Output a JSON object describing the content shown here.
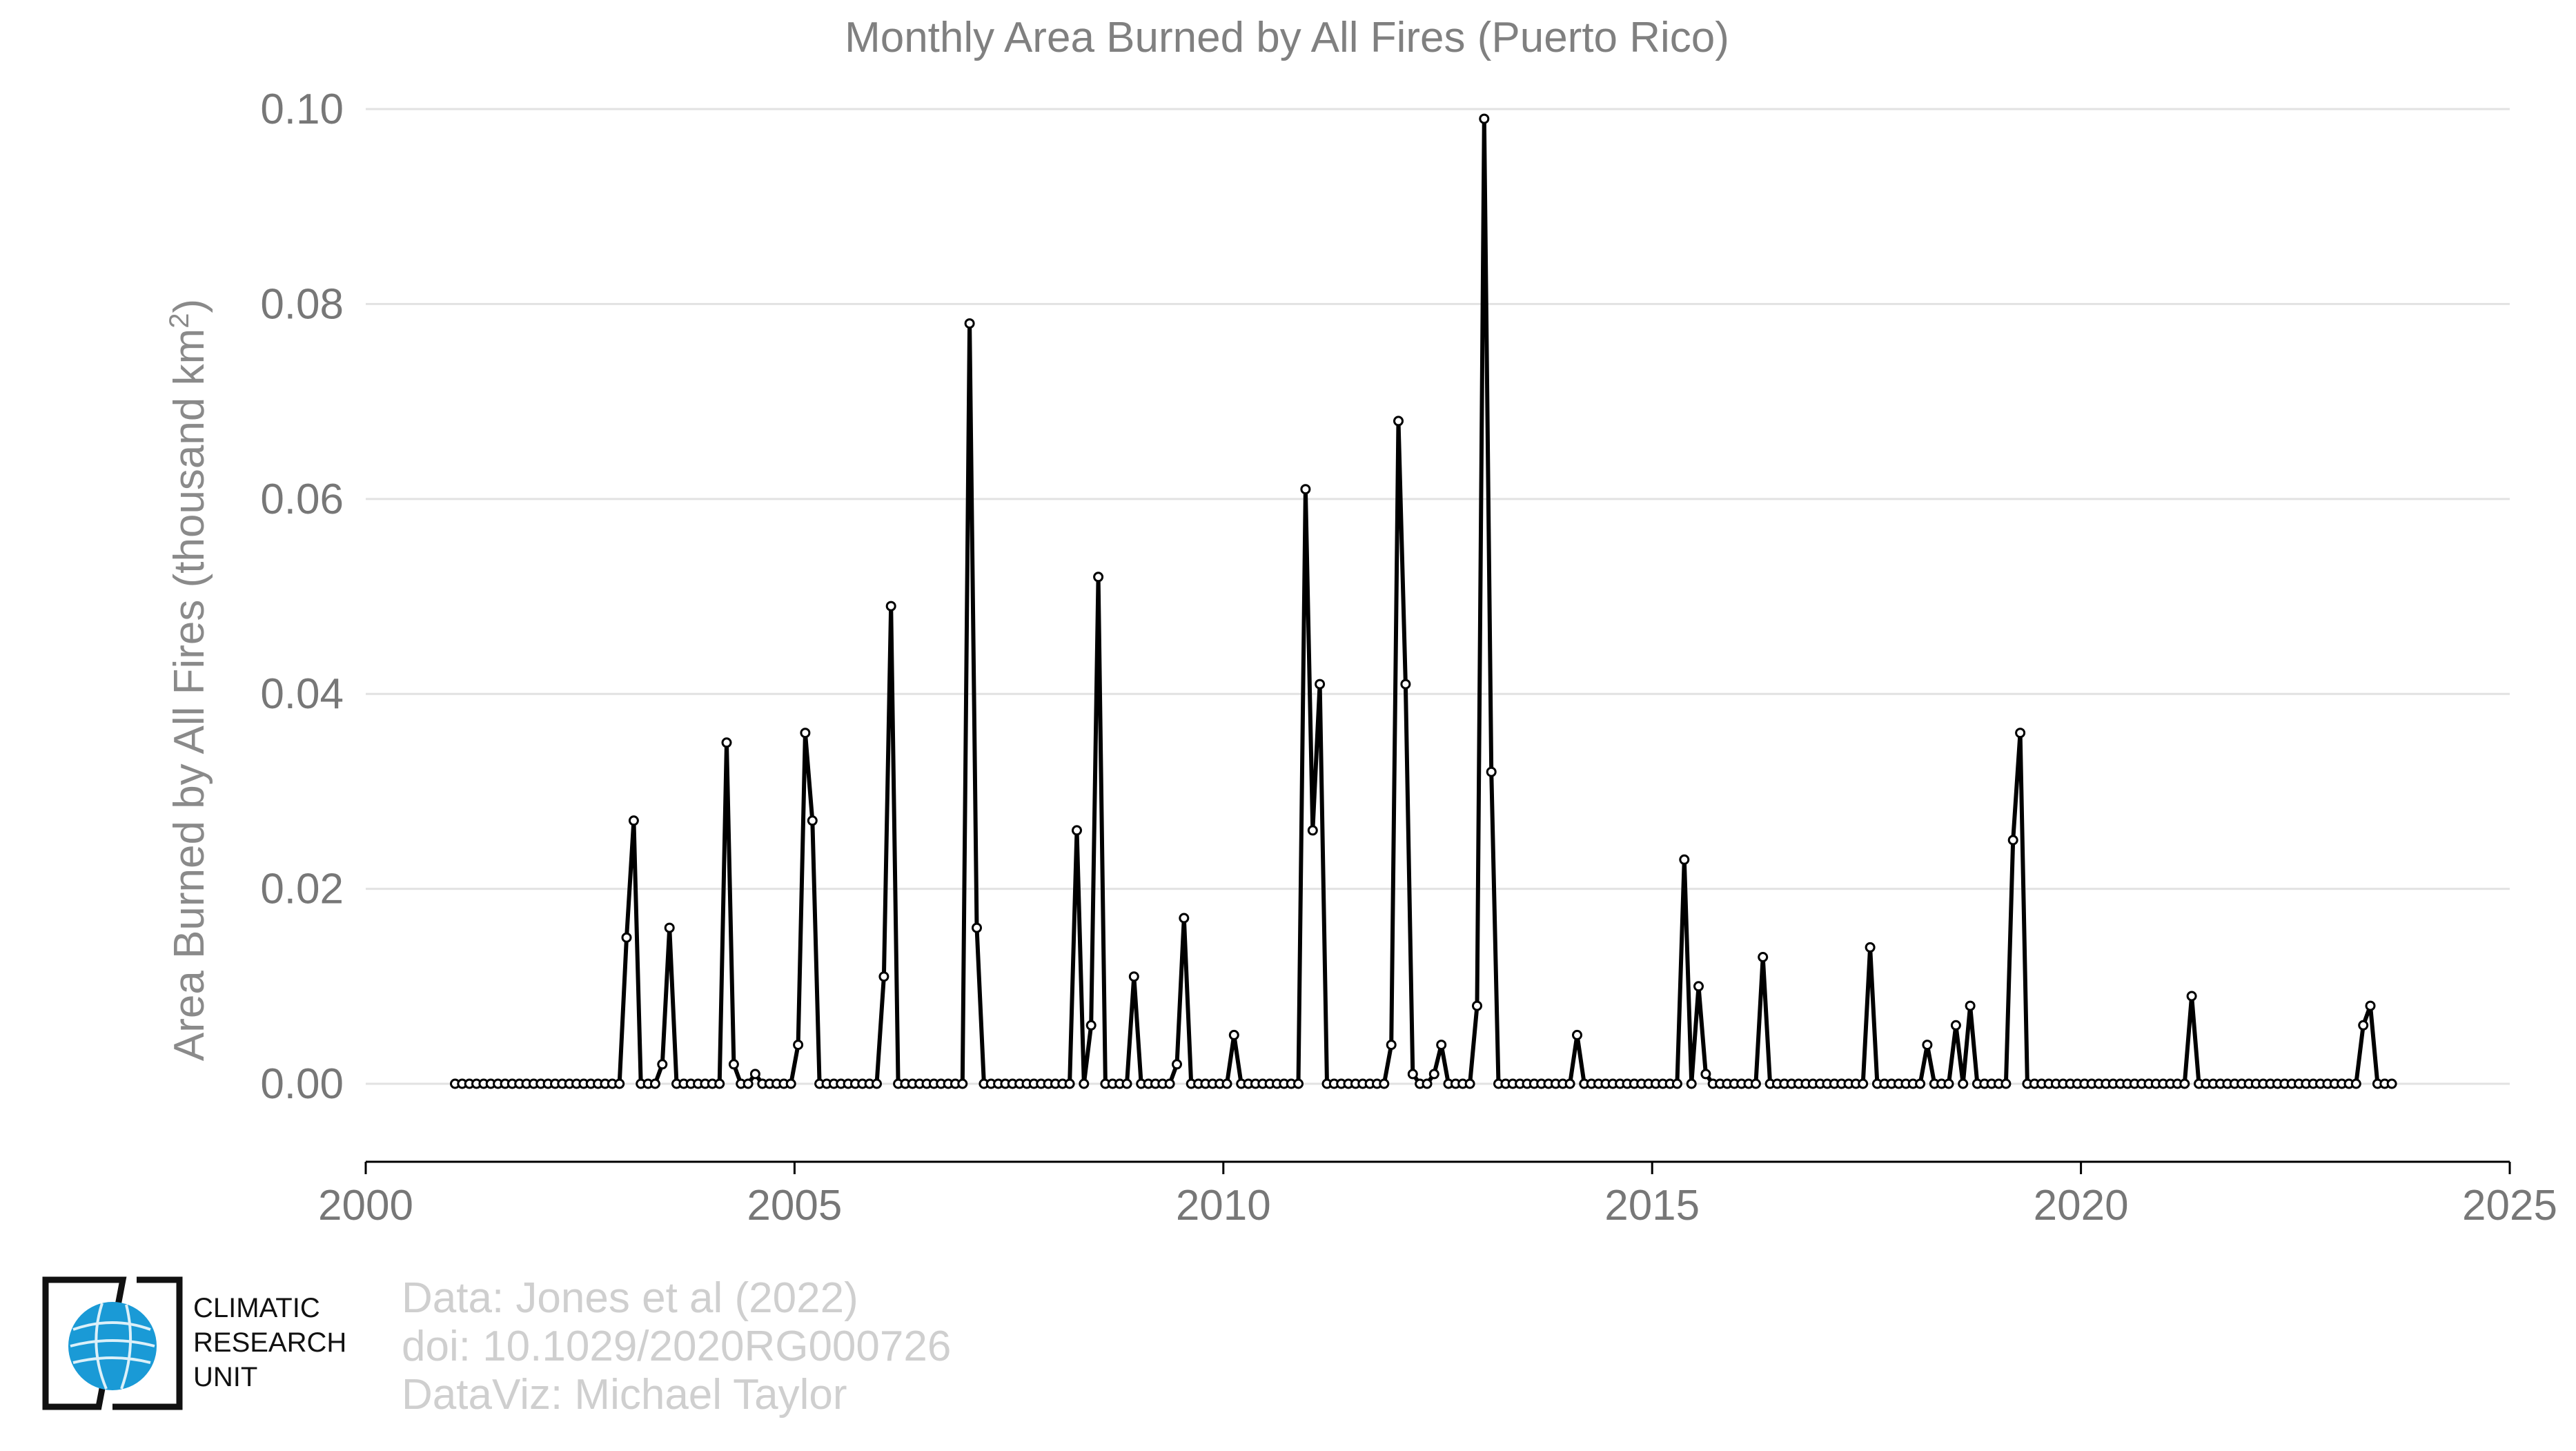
{
  "chart_data": {
    "type": "line",
    "title": "Monthly Area Burned by All Fires (Puerto Rico)",
    "ylabel": "Area Burned by All Fires (thousand km²)",
    "ylabel_main": "Area Burned by All Fires (thousand km",
    "ylabel_sup": "2",
    "ylabel_close": ")",
    "xlabel": "",
    "xlim": [
      2000,
      2025
    ],
    "ylim": [
      -0.008,
      0.1
    ],
    "x_ticks": [
      "2000",
      "2005",
      "2010",
      "2015",
      "2020",
      "2025"
    ],
    "y_ticks": [
      "0.00",
      "0.02",
      "0.04",
      "0.06",
      "0.08",
      "0.10"
    ],
    "grid": "horizontal",
    "legend": "none",
    "line_color": "#000000",
    "start": "2001-01",
    "series": [
      {
        "values": [
          0,
          0,
          0,
          0,
          0,
          0,
          0,
          0,
          0,
          0,
          0,
          0,
          0,
          0,
          0,
          0,
          0,
          0,
          0,
          0,
          0,
          0,
          0,
          0,
          0.015,
          0.027,
          0,
          0,
          0,
          0.002,
          0.016,
          0,
          0,
          0,
          0,
          0,
          0,
          0,
          0.035,
          0.002,
          0,
          0,
          0.001,
          0,
          0,
          0,
          0,
          0,
          0.004,
          0.036,
          0.027,
          0,
          0,
          0,
          0,
          0,
          0,
          0,
          0,
          0,
          0.011,
          0.049,
          0,
          0,
          0,
          0,
          0,
          0,
          0,
          0,
          0,
          0,
          0.078,
          0.016,
          0,
          0,
          0,
          0,
          0,
          0,
          0,
          0,
          0,
          0,
          0,
          0,
          0,
          0.026,
          0,
          0.006,
          0.052,
          0,
          0,
          0,
          0,
          0.011,
          0,
          0,
          0,
          0,
          0,
          0.002,
          0.017,
          0,
          0,
          0,
          0,
          0,
          0,
          0.005,
          0,
          0,
          0,
          0,
          0,
          0,
          0,
          0,
          0,
          0.061,
          0.026,
          0.041,
          0,
          0,
          0,
          0,
          0,
          0,
          0,
          0,
          0,
          0.004,
          0.068,
          0.041,
          0.001,
          0,
          0,
          0.001,
          0.004,
          0,
          0,
          0,
          0,
          0.008,
          0.099,
          0.032,
          0,
          0,
          0,
          0,
          0,
          0,
          0,
          0,
          0,
          0,
          0,
          0.005,
          0,
          0,
          0,
          0,
          0,
          0,
          0,
          0,
          0,
          0,
          0,
          0,
          0,
          0,
          0.023,
          0,
          0.01,
          0.001,
          0,
          0,
          0,
          0,
          0,
          0,
          0,
          0.013,
          0,
          0,
          0,
          0,
          0,
          0,
          0,
          0,
          0,
          0,
          0,
          0,
          0,
          0,
          0.014,
          0,
          0,
          0,
          0,
          0,
          0,
          0,
          0.004,
          0,
          0,
          0,
          0.006,
          0,
          0.008,
          0,
          0,
          0,
          0,
          0,
          0.025,
          0.036,
          0,
          0,
          0,
          0,
          0,
          0,
          0,
          0,
          0,
          0,
          0,
          0,
          0,
          0,
          0,
          0,
          0,
          0,
          0,
          0,
          0,
          0,
          0,
          0.009,
          0,
          0,
          0,
          0,
          0,
          0,
          0,
          0,
          0,
          0,
          0,
          0,
          0,
          0,
          0,
          0,
          0,
          0,
          0,
          0,
          0,
          0,
          0,
          0.006,
          0.008,
          0,
          0,
          0
        ]
      }
    ]
  },
  "credits": {
    "line1": "Data: Jones et al (2022)",
    "line2": "doi: 10.1029/2020RG000726",
    "line3": "DataViz: Michael Taylor"
  },
  "logo": {
    "line1": "CLIMATIC",
    "line2": "RESEARCH",
    "line3": "UNIT",
    "globe_color": "#1a9ad6"
  }
}
